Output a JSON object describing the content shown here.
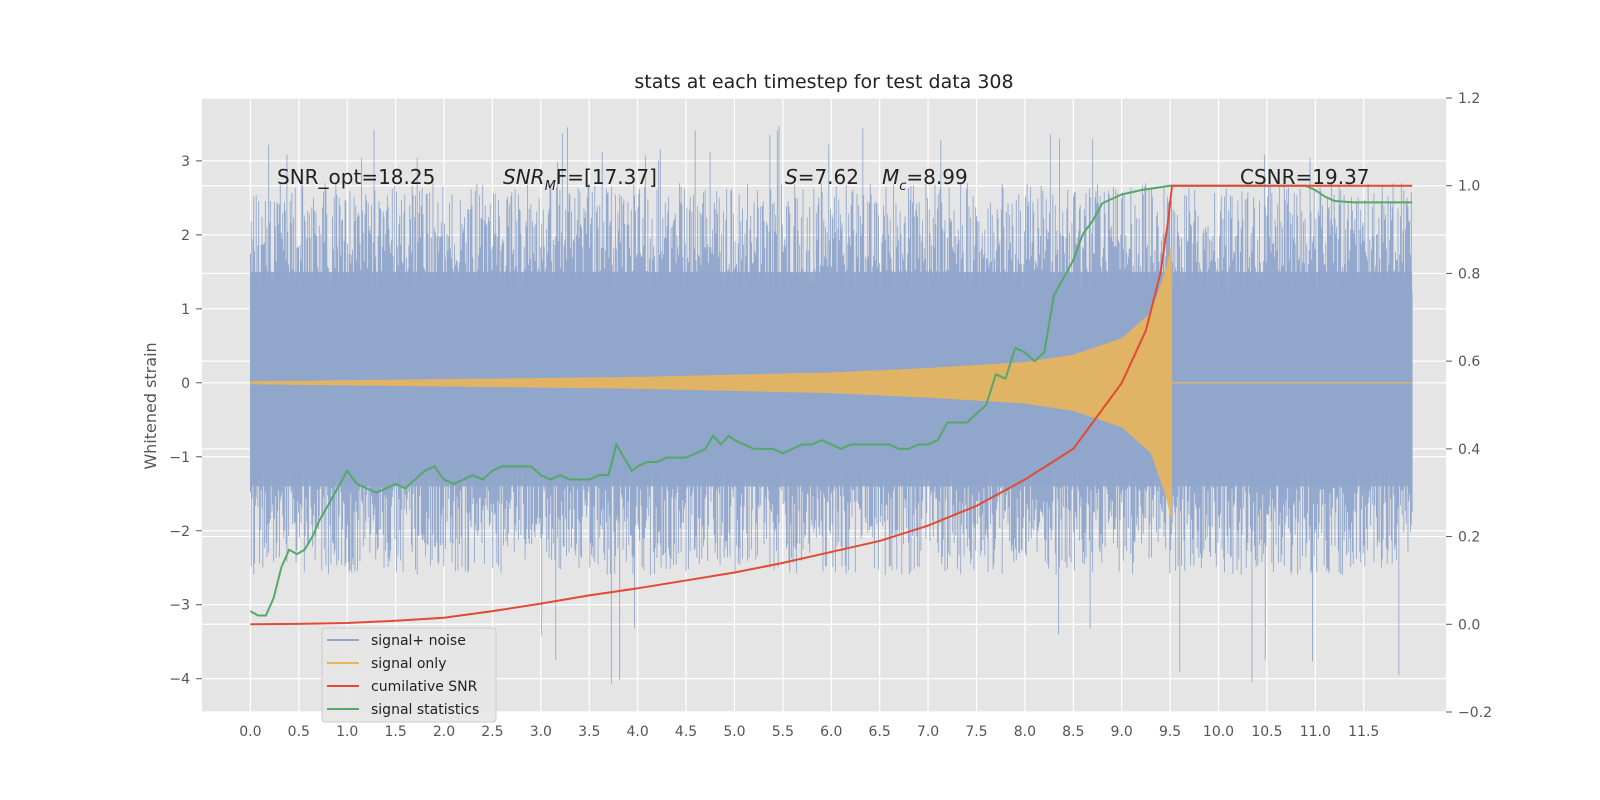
{
  "chart_data": {
    "type": "line",
    "title": "stats at each timestep for test data 308",
    "ylabel": "Whitened strain",
    "xlim": [
      -0.5,
      12.35
    ],
    "ylim": [
      -4.45,
      3.85
    ],
    "y2lim": [
      -0.2,
      1.2
    ],
    "x_ticks": [
      "0.0",
      "0.5",
      "1.0",
      "1.5",
      "2.0",
      "2.5",
      "3.0",
      "3.5",
      "4.0",
      "4.5",
      "5.0",
      "5.5",
      "6.0",
      "6.5",
      "7.0",
      "7.5",
      "8.0",
      "8.5",
      "9.0",
      "9.5",
      "10.0",
      "10.5",
      "11.0",
      "11.5"
    ],
    "y_ticks": [
      "3",
      "2",
      "1",
      "0",
      "−1",
      "−2",
      "−3",
      "−4"
    ],
    "y2_ticks": [
      "1.2",
      "1.0",
      "0.8",
      "0.6",
      "0.4",
      "0.2",
      "0.0",
      "−0.2"
    ],
    "grid": true,
    "legend_position": "lower-left",
    "annotations": {
      "snr_opt": "SNR_opt=18.25",
      "snr_mf_prefix": "SNR",
      "snr_mf_sub": "M",
      "snr_mf_suffix": "F=[17.37]",
      "s_prefix": "S",
      "s_suffix": "=7.62",
      "mc_prefix": "M",
      "mc_sub": "c",
      "mc_suffix": "=8.99",
      "csnr": "CSNR=19.37"
    },
    "series": [
      {
        "name": "signal+ noise",
        "color": "#8fa5cb",
        "axis": "left",
        "kind": "noise",
        "x_range": [
          0.0,
          12.0
        ],
        "envelope_upper": 2.7,
        "envelope_lower": -2.6,
        "peak_max": 3.5,
        "peak_min": -4.1
      },
      {
        "name": "signal only",
        "color": "#e8b55c",
        "axis": "left",
        "kind": "chirp",
        "x_range": [
          0.0,
          9.52
        ],
        "amplitude_points": [
          [
            0.0,
            0.02
          ],
          [
            2.0,
            0.05
          ],
          [
            4.0,
            0.08
          ],
          [
            6.0,
            0.14
          ],
          [
            7.0,
            0.2
          ],
          [
            8.0,
            0.28
          ],
          [
            8.5,
            0.38
          ],
          [
            9.0,
            0.6
          ],
          [
            9.3,
            0.95
          ],
          [
            9.45,
            1.5
          ],
          [
            9.52,
            1.9
          ]
        ]
      },
      {
        "name": "cumilative SNR",
        "color": "#e24a33",
        "axis": "right",
        "points": [
          [
            0.0,
            0.0
          ],
          [
            0.5,
            0.001
          ],
          [
            1.0,
            0.003
          ],
          [
            1.5,
            0.008
          ],
          [
            2.0,
            0.015
          ],
          [
            2.5,
            0.03
          ],
          [
            3.0,
            0.047
          ],
          [
            3.5,
            0.066
          ],
          [
            4.0,
            0.082
          ],
          [
            4.5,
            0.1
          ],
          [
            5.0,
            0.118
          ],
          [
            5.5,
            0.14
          ],
          [
            6.0,
            0.165
          ],
          [
            6.5,
            0.19
          ],
          [
            7.0,
            0.225
          ],
          [
            7.5,
            0.27
          ],
          [
            8.0,
            0.33
          ],
          [
            8.5,
            0.4
          ],
          [
            9.0,
            0.55
          ],
          [
            9.25,
            0.67
          ],
          [
            9.4,
            0.8
          ],
          [
            9.48,
            0.92
          ],
          [
            9.52,
            1.0
          ],
          [
            12.0,
            1.0
          ]
        ]
      },
      {
        "name": "signal statistics",
        "color": "#55a868",
        "axis": "right",
        "points": [
          [
            0.0,
            0.03
          ],
          [
            0.08,
            0.02
          ],
          [
            0.16,
            0.02
          ],
          [
            0.24,
            0.06
          ],
          [
            0.32,
            0.13
          ],
          [
            0.4,
            0.17
          ],
          [
            0.48,
            0.16
          ],
          [
            0.56,
            0.17
          ],
          [
            0.64,
            0.2
          ],
          [
            0.72,
            0.24
          ],
          [
            0.8,
            0.27
          ],
          [
            0.9,
            0.31
          ],
          [
            1.0,
            0.35
          ],
          [
            1.1,
            0.32
          ],
          [
            1.2,
            0.31
          ],
          [
            1.3,
            0.3
          ],
          [
            1.4,
            0.31
          ],
          [
            1.5,
            0.32
          ],
          [
            1.6,
            0.31
          ],
          [
            1.7,
            0.33
          ],
          [
            1.8,
            0.35
          ],
          [
            1.9,
            0.36
          ],
          [
            2.0,
            0.33
          ],
          [
            2.1,
            0.32
          ],
          [
            2.2,
            0.33
          ],
          [
            2.3,
            0.34
          ],
          [
            2.4,
            0.33
          ],
          [
            2.5,
            0.35
          ],
          [
            2.6,
            0.36
          ],
          [
            2.7,
            0.36
          ],
          [
            2.8,
            0.36
          ],
          [
            2.9,
            0.36
          ],
          [
            3.0,
            0.34
          ],
          [
            3.1,
            0.33
          ],
          [
            3.2,
            0.34
          ],
          [
            3.3,
            0.33
          ],
          [
            3.4,
            0.33
          ],
          [
            3.5,
            0.33
          ],
          [
            3.6,
            0.34
          ],
          [
            3.7,
            0.34
          ],
          [
            3.78,
            0.41
          ],
          [
            3.86,
            0.38
          ],
          [
            3.94,
            0.35
          ],
          [
            4.0,
            0.36
          ],
          [
            4.1,
            0.37
          ],
          [
            4.2,
            0.37
          ],
          [
            4.3,
            0.38
          ],
          [
            4.4,
            0.38
          ],
          [
            4.5,
            0.38
          ],
          [
            4.6,
            0.39
          ],
          [
            4.7,
            0.4
          ],
          [
            4.78,
            0.43
          ],
          [
            4.86,
            0.41
          ],
          [
            4.94,
            0.43
          ],
          [
            5.0,
            0.42
          ],
          [
            5.1,
            0.41
          ],
          [
            5.2,
            0.4
          ],
          [
            5.3,
            0.4
          ],
          [
            5.4,
            0.4
          ],
          [
            5.5,
            0.39
          ],
          [
            5.6,
            0.4
          ],
          [
            5.7,
            0.41
          ],
          [
            5.8,
            0.41
          ],
          [
            5.9,
            0.42
          ],
          [
            6.0,
            0.41
          ],
          [
            6.1,
            0.4
          ],
          [
            6.2,
            0.41
          ],
          [
            6.3,
            0.41
          ],
          [
            6.4,
            0.41
          ],
          [
            6.5,
            0.41
          ],
          [
            6.6,
            0.41
          ],
          [
            6.7,
            0.4
          ],
          [
            6.8,
            0.4
          ],
          [
            6.9,
            0.41
          ],
          [
            7.0,
            0.41
          ],
          [
            7.1,
            0.42
          ],
          [
            7.2,
            0.46
          ],
          [
            7.3,
            0.46
          ],
          [
            7.4,
            0.46
          ],
          [
            7.5,
            0.48
          ],
          [
            7.6,
            0.5
          ],
          [
            7.7,
            0.57
          ],
          [
            7.8,
            0.56
          ],
          [
            7.9,
            0.63
          ],
          [
            8.0,
            0.62
          ],
          [
            8.1,
            0.6
          ],
          [
            8.2,
            0.62
          ],
          [
            8.3,
            0.75
          ],
          [
            8.4,
            0.79
          ],
          [
            8.5,
            0.83
          ],
          [
            8.6,
            0.89
          ],
          [
            8.7,
            0.92
          ],
          [
            8.8,
            0.96
          ],
          [
            8.9,
            0.97
          ],
          [
            9.0,
            0.98
          ],
          [
            9.2,
            0.99
          ],
          [
            9.5,
            1.0
          ],
          [
            10.0,
            1.0
          ],
          [
            10.5,
            1.0
          ],
          [
            10.9,
            1.0
          ],
          [
            11.0,
            0.99
          ],
          [
            11.1,
            0.975
          ],
          [
            11.2,
            0.965
          ],
          [
            11.4,
            0.962
          ],
          [
            11.6,
            0.962
          ],
          [
            12.0,
            0.962
          ]
        ]
      }
    ]
  }
}
